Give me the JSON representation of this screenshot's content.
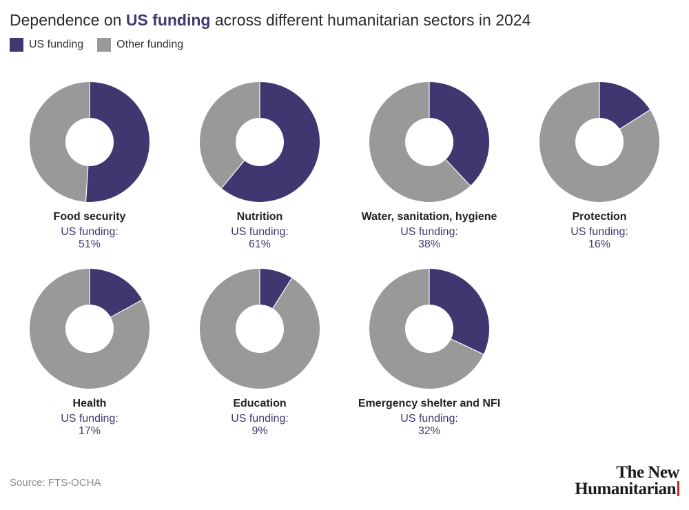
{
  "title": {
    "prefix": "Dependence on ",
    "highlight": "US funding",
    "suffix": " across different humanitarian sectors in 2024"
  },
  "legend": [
    {
      "label": "US funding",
      "color": "#3f3870"
    },
    {
      "label": "Other funding",
      "color": "#999999"
    }
  ],
  "chart_data": {
    "type": "pie",
    "variant": "donut",
    "series": [
      {
        "name": "US funding",
        "color": "#3f3870"
      },
      {
        "name": "Other funding",
        "color": "#999999"
      }
    ],
    "items": [
      {
        "category": "Food security",
        "caption": "US funding:",
        "us_share": 51,
        "value_label": "51%"
      },
      {
        "category": "Nutrition",
        "caption": "US funding:",
        "us_share": 61,
        "value_label": "61%"
      },
      {
        "category": "Water, sanitation, hygiene",
        "caption": "US funding:",
        "us_share": 38,
        "value_label": "38%"
      },
      {
        "category": "Protection",
        "caption": "US funding:",
        "us_share": 16,
        "value_label": "16%"
      },
      {
        "category": "Health",
        "caption": "US funding:",
        "us_share": 17,
        "value_label": "17%"
      },
      {
        "category": "Education",
        "caption": "US funding:",
        "us_share": 9,
        "value_label": "9%"
      },
      {
        "category": "Emergency shelter and NFI",
        "caption": "US funding:",
        "us_share": 32,
        "value_label": "32%"
      }
    ]
  },
  "source": "Source: FTS-OCHA",
  "logo": {
    "line1": "The New",
    "line2": "Humanitarian"
  }
}
